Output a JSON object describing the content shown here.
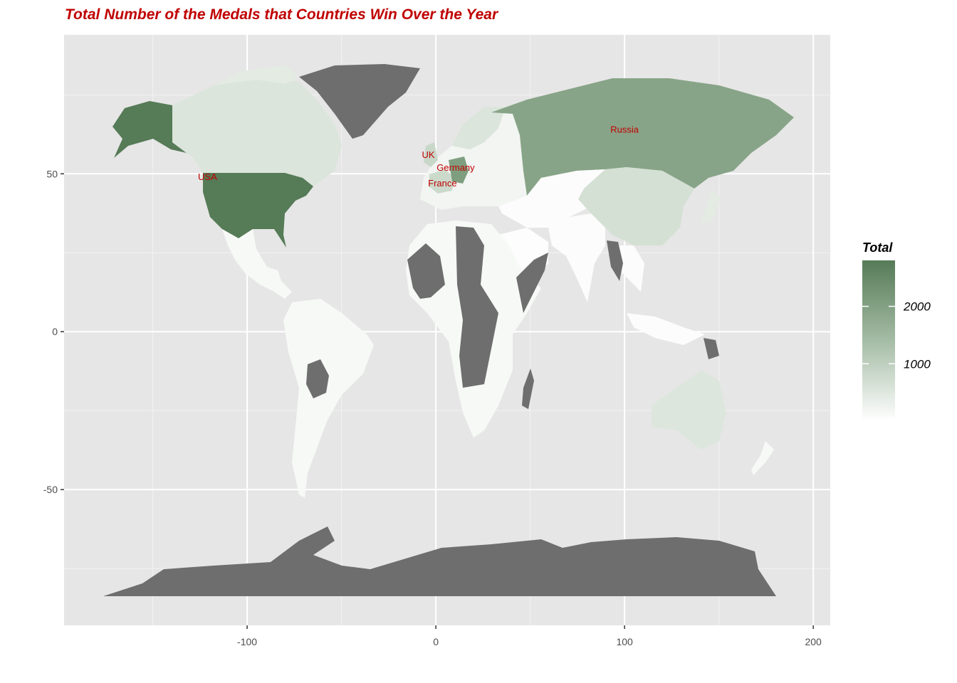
{
  "chart_data": {
    "type": "choropleth",
    "title": "Total Number of the Medals that Countries Win Over the Year",
    "xlabel": "",
    "ylabel": "",
    "xlim": [
      -197,
      209
    ],
    "ylim": [
      -93,
      94
    ],
    "x_ticks": [
      -100,
      0,
      100,
      200
    ],
    "y_ticks": [
      -50,
      0,
      50
    ],
    "grid": true,
    "legend": {
      "title": "Total",
      "placement": "right",
      "range": [
        0,
        2800
      ],
      "ticks": [
        1000,
        2000
      ],
      "colors": {
        "low": "#ffffff",
        "high": "#567b57",
        "missing": "#6e6e6e"
      }
    },
    "labels": [
      {
        "text": "USA",
        "lon": -121,
        "lat": 48
      },
      {
        "text": "UK",
        "lon": -4,
        "lat": 55
      },
      {
        "text": "Germany",
        "lon": 10.5,
        "lat": 51
      },
      {
        "text": "France",
        "lon": 3.5,
        "lat": 46
      },
      {
        "text": "Russia",
        "lon": 100,
        "lat": 63
      }
    ],
    "countries": [
      {
        "name": "USA",
        "total": 2800
      },
      {
        "name": "Russia",
        "total": 1900
      },
      {
        "name": "Germany",
        "total": 1600
      },
      {
        "name": "UK",
        "total": 900
      },
      {
        "name": "France",
        "total": 850
      },
      {
        "name": "China",
        "total": 500
      },
      {
        "name": "Canada",
        "total": 450
      },
      {
        "name": "Australia",
        "total": 400
      },
      {
        "name": "Brazil",
        "total": 120
      },
      {
        "name": "Greenland",
        "total": null
      },
      {
        "name": "Antarctica",
        "total": null
      }
    ]
  }
}
